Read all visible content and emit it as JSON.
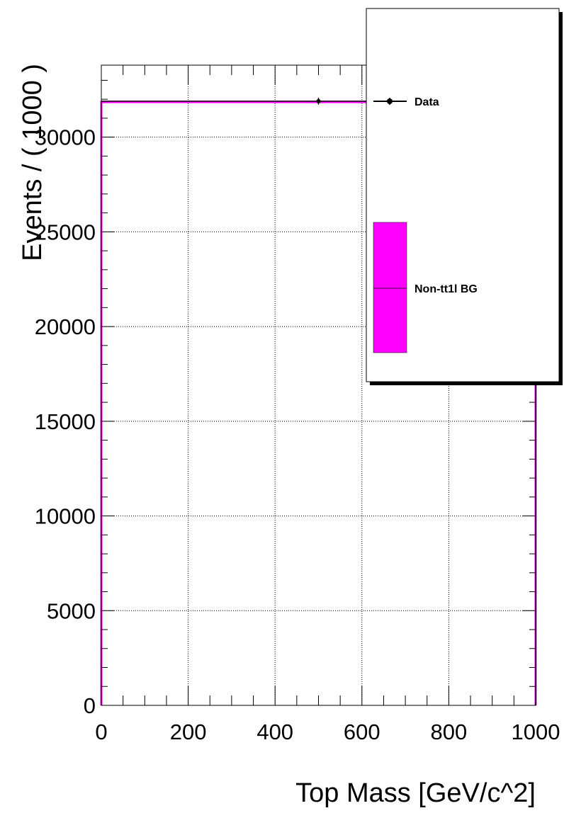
{
  "chart_data": {
    "type": "histogram",
    "xlabel": "Top Mass [GeV/c^2]",
    "ylabel": "Events / ( 1000 )",
    "xlim": [
      0,
      1000
    ],
    "ylim": [
      0,
      33800
    ],
    "x_ticks": [
      0,
      200,
      400,
      600,
      800,
      1000
    ],
    "y_ticks": [
      0,
      5000,
      10000,
      15000,
      20000,
      25000,
      30000
    ],
    "x_tick_labels": [
      "0",
      "200",
      "400",
      "600",
      "800",
      "1000"
    ],
    "y_tick_labels": [
      "0",
      "5000",
      "10000",
      "15000",
      "20000",
      "25000",
      "30000"
    ],
    "grid": true,
    "legend_position": "top-right",
    "series": [
      {
        "name": "Data",
        "kind": "points",
        "color": "#000000",
        "points": [
          {
            "x": 500,
            "y": 31900,
            "xerr": 500,
            "yerr": 180
          }
        ]
      },
      {
        "name": "Non-tt1l BG",
        "kind": "filled-histogram",
        "color": "#ff00ff",
        "bins": [
          {
            "xlow": 0,
            "xhigh": 1000,
            "value": 31850
          }
        ]
      }
    ]
  }
}
